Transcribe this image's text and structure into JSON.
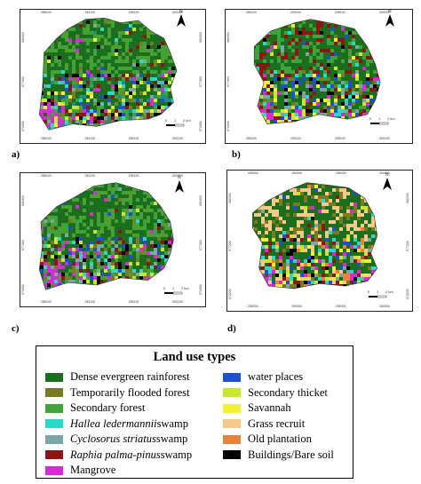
{
  "panels": [
    {
      "id": "a",
      "label": "a)",
      "top_ticks": [
        "285100",
        "290100",
        "295100",
        "300100"
      ],
      "bottom_ticks": [
        "285100",
        "290100",
        "295100",
        "300100"
      ],
      "left_ticks": [
        "582300",
        "577300",
        "572300"
      ],
      "right_ticks": [
        "582300",
        "577300",
        "572300"
      ],
      "north": "N",
      "scale_labels": [
        "0",
        "1",
        "2 km"
      ],
      "colors": [
        "#1c6e1f",
        "#4f9e32",
        "#3fa33c",
        "#f5f032",
        "#c8e632",
        "#7a7a22",
        "#1f8f86",
        "#2ad9c9",
        "#7aa6a6",
        "#8c1616",
        "#d62bd6",
        "#1e50d2",
        "#000000"
      ]
    },
    {
      "id": "b",
      "label": "b)",
      "top_ticks": [
        "285100",
        "290100",
        "295100",
        "300100"
      ],
      "bottom_ticks": [
        "285100",
        "290100",
        "295100",
        "300100"
      ],
      "left_ticks": [
        "582300",
        "577300",
        "572300"
      ],
      "right_ticks": [],
      "north": "N",
      "scale_labels": [
        "0",
        "1",
        "2 km"
      ],
      "colors": [
        "#1c6e1f",
        "#3fa33c",
        "#8c1616",
        "#c8e632",
        "#7a7a22",
        "#2ad9c9",
        "#7aa6a6",
        "#d62bd6",
        "#1e50d2",
        "#000000",
        "#f5f032"
      ]
    },
    {
      "id": "c",
      "label": "c)",
      "top_ticks": [
        "285100",
        "290100",
        "295100",
        "300100"
      ],
      "bottom_ticks": [
        "285100",
        "290100",
        "295100",
        "300100"
      ],
      "left_ticks": [
        "582300",
        "577300",
        "572300"
      ],
      "right_ticks": [
        "582300",
        "577300",
        "572300"
      ],
      "north": "N",
      "scale_labels": [
        "0",
        "1",
        "2 km"
      ],
      "colors": [
        "#1c6e1f",
        "#4f9e32",
        "#3fa33c",
        "#2ad9c9",
        "#7aa6a6",
        "#8c1616",
        "#d62bd6",
        "#c8e632",
        "#7a7a22",
        "#000000",
        "#1e50d2"
      ]
    },
    {
      "id": "d",
      "label": "d)",
      "top_ticks": [
        "285000",
        "290000",
        "295000",
        "300000"
      ],
      "bottom_ticks": [
        "285000",
        "290000",
        "295000",
        "300000"
      ],
      "left_ticks": [
        "582200",
        "577200",
        "572200"
      ],
      "right_ticks": [
        "582200",
        "577200",
        "572200"
      ],
      "north": "N",
      "scale_labels": [
        "0",
        "1",
        "2 km"
      ],
      "colors": [
        "#1c6e1f",
        "#f5c98a",
        "#7a7a22",
        "#e8833a",
        "#c8e632",
        "#f5f032",
        "#2ad9c9",
        "#7aa6a6",
        "#8c1616",
        "#d62bd6",
        "#000000",
        "#1e50d2"
      ]
    }
  ],
  "legend": {
    "title": "Land use types",
    "left": [
      {
        "color": "#1c6e1f",
        "parts": [
          {
            "t": "Dense evergreen rainforest",
            "i": false
          }
        ]
      },
      {
        "color": "#7a7a22",
        "parts": [
          {
            "t": "Temporarily flooded forest",
            "i": false
          }
        ]
      },
      {
        "color": "#3fa33c",
        "parts": [
          {
            "t": "Secondary forest",
            "i": false
          }
        ]
      },
      {
        "color": "#2ad9c9",
        "parts": [
          {
            "t": "Hallea ledermannii",
            "i": true
          },
          {
            "t": " swamp",
            "i": false
          }
        ]
      },
      {
        "color": "#7aa6a6",
        "parts": [
          {
            "t": "Cyclosorus striatus",
            "i": true
          },
          {
            "t": " swamp",
            "i": false
          }
        ]
      },
      {
        "color": "#8c1616",
        "parts": [
          {
            "t": "Raphia palma-pinus",
            "i": true
          },
          {
            "t": " swamp",
            "i": false
          }
        ]
      },
      {
        "color": "#d62bd6",
        "parts": [
          {
            "t": "Mangrove",
            "i": false
          }
        ]
      }
    ],
    "right": [
      {
        "color": "#1e50d2",
        "parts": [
          {
            "t": "water places",
            "i": false
          }
        ]
      },
      {
        "color": "#c8e632",
        "parts": [
          {
            "t": "Secondary thicket",
            "i": false
          }
        ]
      },
      {
        "color": "#f5f032",
        "parts": [
          {
            "t": "Savannah",
            "i": false
          }
        ]
      },
      {
        "color": "#f5c98a",
        "parts": [
          {
            "t": "Grass recruit",
            "i": false
          }
        ]
      },
      {
        "color": "#e8833a",
        "parts": [
          {
            "t": "Old plantation",
            "i": false
          }
        ]
      },
      {
        "color": "#000000",
        "parts": [
          {
            "t": "Buildings/Bare soil",
            "i": false
          }
        ]
      }
    ]
  }
}
